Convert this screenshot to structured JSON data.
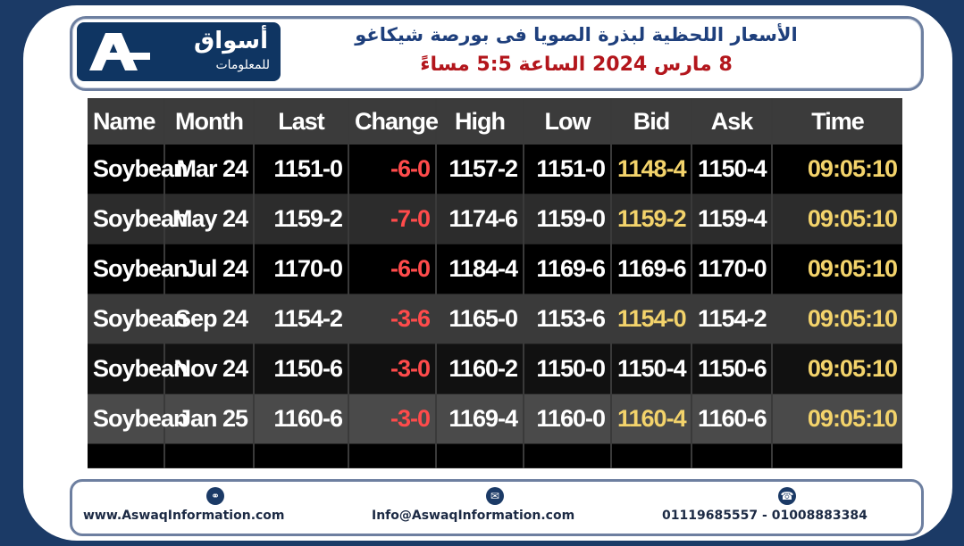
{
  "header": {
    "logo_name": "أسواق",
    "logo_sub": "للمعلومات",
    "title_line1": "الأسعار اللحظية لبذرة الصويا فى بورصة شيكاغو",
    "title_line2": "8 مارس 2024 الساعة 5:5 مساءً"
  },
  "table": {
    "columns": [
      "Name",
      "Month",
      "Last",
      "Change",
      "High",
      "Low",
      "Bid",
      "Ask",
      "Time"
    ],
    "rows": [
      {
        "name": "Soybean",
        "month": "Mar 24",
        "last": "1151-0",
        "change": "-6-0",
        "high": "1157-2",
        "low": "1151-0",
        "bid": "1148-4",
        "ask": "1150-4",
        "time": "09:05:10"
      },
      {
        "name": "Soybean",
        "month": "May 24",
        "last": "1159-2",
        "change": "-7-0",
        "high": "1174-6",
        "low": "1159-0",
        "bid": "1159-2",
        "ask": "1159-4",
        "time": "09:05:10"
      },
      {
        "name": "Soybean",
        "month": "Jul 24",
        "last": "1170-0",
        "change": "-6-0",
        "high": "1184-4",
        "low": "1169-6",
        "bid": "1169-6",
        "ask": "1170-0",
        "time": "09:05:10"
      },
      {
        "name": "Soybean",
        "month": "Sep 24",
        "last": "1154-2",
        "change": "-3-6",
        "high": "1165-0",
        "low": "1153-6",
        "bid": "1154-0",
        "ask": "1154-2",
        "time": "09:05:10"
      },
      {
        "name": "Soybean",
        "month": "Nov 24",
        "last": "1150-6",
        "change": "-3-0",
        "high": "1160-2",
        "low": "1150-0",
        "bid": "1150-4",
        "ask": "1150-6",
        "time": "09:05:10"
      },
      {
        "name": "Soybean",
        "month": "Jan 25",
        "last": "1160-6",
        "change": "-3-0",
        "high": "1169-4",
        "low": "1160-0",
        "bid": "1160-4",
        "ask": "1160-6",
        "time": "09:05:10"
      }
    ]
  },
  "footer": {
    "website": "www.AswaqInformation.com",
    "email": "Info@AswaqInformation.com",
    "phones": "01119685557 - 01008883384",
    "icons": [
      "globe-icon",
      "mail-icon",
      "phone-icon"
    ]
  },
  "colors": {
    "background": "#1b3a66",
    "title_blue": "#1e3f7c",
    "title_red": "#b3161c",
    "negative": "#ff4b4b",
    "highlight": "#f3d36b"
  }
}
